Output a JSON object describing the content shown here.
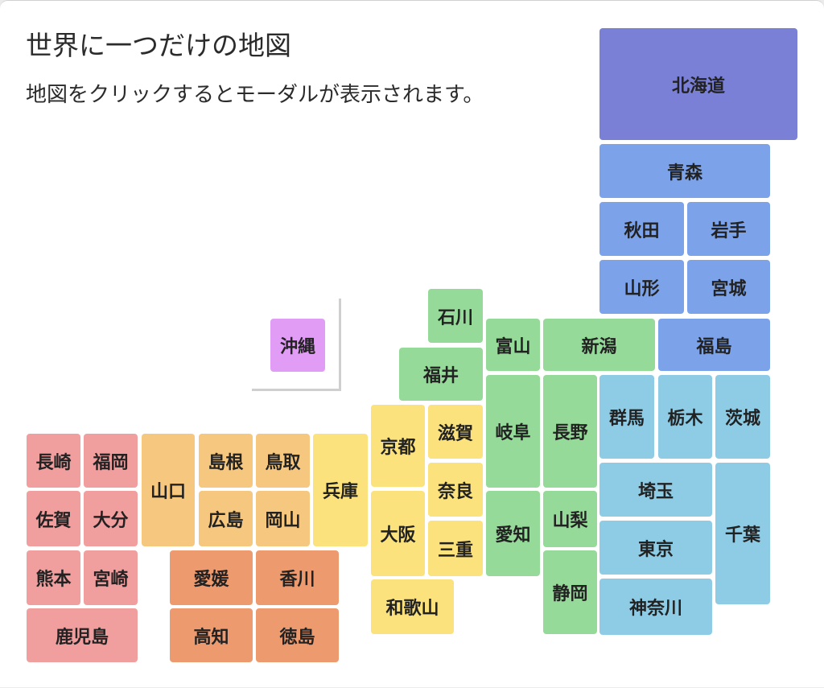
{
  "page": {
    "title": "世界に一つだけの地図",
    "description": "地図をクリックするとモーダルが表示されます。"
  },
  "colors": {
    "hokkaido": "#7a80d6",
    "tohoku": "#7ca3ea",
    "kanto": "#8ecce6",
    "chubu": "#95da98",
    "kinki": "#fbe27c",
    "chugoku": "#f6c77e",
    "shikoku": "#ee9a6f",
    "kyushu": "#f19e9e",
    "okinawa": "#e19df5"
  },
  "prefectures": [
    {
      "id": "hokkaido",
      "label": "北海道",
      "region": "hokkaido"
    },
    {
      "id": "aomori",
      "label": "青森",
      "region": "tohoku"
    },
    {
      "id": "akita",
      "label": "秋田",
      "region": "tohoku"
    },
    {
      "id": "iwate",
      "label": "岩手",
      "region": "tohoku"
    },
    {
      "id": "yamagata",
      "label": "山形",
      "region": "tohoku"
    },
    {
      "id": "miyagi",
      "label": "宮城",
      "region": "tohoku"
    },
    {
      "id": "fukushima",
      "label": "福島",
      "region": "tohoku"
    },
    {
      "id": "gunma",
      "label": "群馬",
      "region": "kanto"
    },
    {
      "id": "tochigi",
      "label": "栃木",
      "region": "kanto"
    },
    {
      "id": "ibaraki",
      "label": "茨城",
      "region": "kanto"
    },
    {
      "id": "saitama",
      "label": "埼玉",
      "region": "kanto"
    },
    {
      "id": "chiba",
      "label": "千葉",
      "region": "kanto"
    },
    {
      "id": "tokyo",
      "label": "東京",
      "region": "kanto"
    },
    {
      "id": "kanagawa",
      "label": "神奈川",
      "region": "kanto"
    },
    {
      "id": "ishikawa",
      "label": "石川",
      "region": "chubu"
    },
    {
      "id": "toyama",
      "label": "富山",
      "region": "chubu"
    },
    {
      "id": "niigata",
      "label": "新潟",
      "region": "chubu"
    },
    {
      "id": "fukui",
      "label": "福井",
      "region": "chubu"
    },
    {
      "id": "gifu",
      "label": "岐阜",
      "region": "chubu"
    },
    {
      "id": "nagano",
      "label": "長野",
      "region": "chubu"
    },
    {
      "id": "aichi",
      "label": "愛知",
      "region": "chubu"
    },
    {
      "id": "yamanashi",
      "label": "山梨",
      "region": "chubu"
    },
    {
      "id": "shizuoka",
      "label": "静岡",
      "region": "chubu"
    },
    {
      "id": "kyoto",
      "label": "京都",
      "region": "kinki"
    },
    {
      "id": "shiga",
      "label": "滋賀",
      "region": "kinki"
    },
    {
      "id": "hyogo",
      "label": "兵庫",
      "region": "kinki"
    },
    {
      "id": "nara",
      "label": "奈良",
      "region": "kinki"
    },
    {
      "id": "osaka",
      "label": "大阪",
      "region": "kinki"
    },
    {
      "id": "mie",
      "label": "三重",
      "region": "kinki"
    },
    {
      "id": "wakayama",
      "label": "和歌山",
      "region": "kinki"
    },
    {
      "id": "yamaguchi",
      "label": "山口",
      "region": "chugoku"
    },
    {
      "id": "shimane",
      "label": "島根",
      "region": "chugoku"
    },
    {
      "id": "tottori",
      "label": "鳥取",
      "region": "chugoku"
    },
    {
      "id": "hiroshima",
      "label": "広島",
      "region": "chugoku"
    },
    {
      "id": "okayama",
      "label": "岡山",
      "region": "chugoku"
    },
    {
      "id": "ehime",
      "label": "愛媛",
      "region": "shikoku"
    },
    {
      "id": "kagawa",
      "label": "香川",
      "region": "shikoku"
    },
    {
      "id": "kochi",
      "label": "高知",
      "region": "shikoku"
    },
    {
      "id": "tokushima",
      "label": "徳島",
      "region": "shikoku"
    },
    {
      "id": "nagasaki",
      "label": "長崎",
      "region": "kyushu"
    },
    {
      "id": "fukuoka",
      "label": "福岡",
      "region": "kyushu"
    },
    {
      "id": "saga",
      "label": "佐賀",
      "region": "kyushu"
    },
    {
      "id": "oita",
      "label": "大分",
      "region": "kyushu"
    },
    {
      "id": "kumamoto",
      "label": "熊本",
      "region": "kyushu"
    },
    {
      "id": "miyazaki",
      "label": "宮崎",
      "region": "kyushu"
    },
    {
      "id": "kagoshima",
      "label": "鹿児島",
      "region": "kyushu"
    },
    {
      "id": "okinawa",
      "label": "沖縄",
      "region": "okinawa"
    }
  ]
}
